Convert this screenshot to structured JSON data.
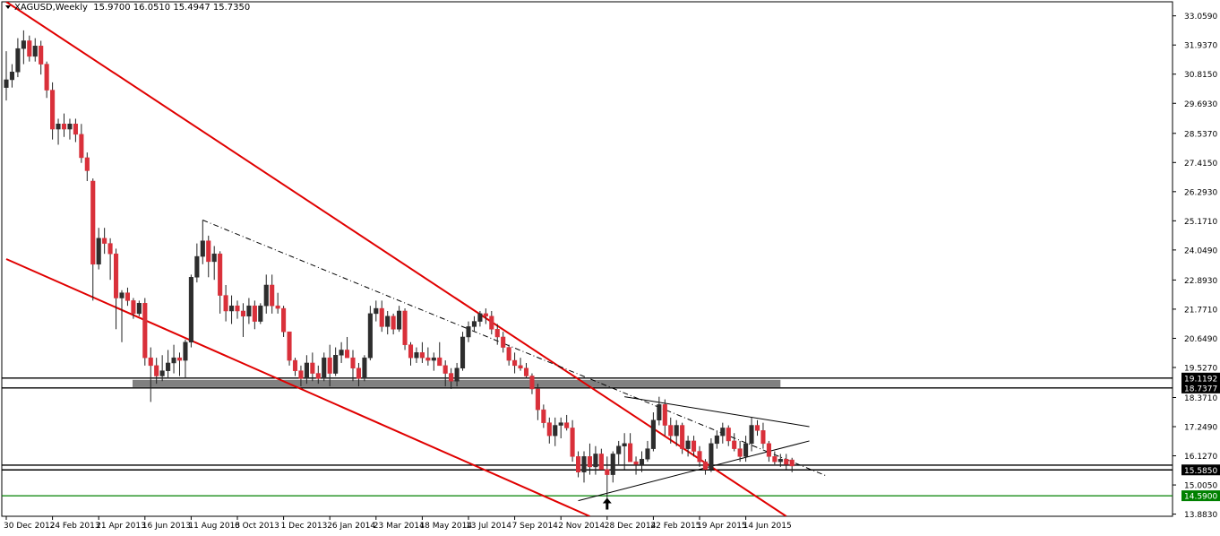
{
  "header": {
    "symbol": "XAGUSD,Weekly",
    "ohlc": "15.9700 16.0510 15.4947 15.7350"
  },
  "colors": {
    "bull": "#2d2d2d",
    "bear": "#d9303a",
    "channel": "#e00000",
    "zone": "#808080",
    "support_green": "#008000",
    "grid": "#000000"
  },
  "chart_data": {
    "type": "candlestick",
    "title": "",
    "ylim": [
      13.8,
      33.6
    ],
    "y_ticks": [
      "33.0590",
      "31.9370",
      "30.8150",
      "29.6930",
      "28.5370",
      "27.4150",
      "26.2930",
      "25.1710",
      "24.0490",
      "22.8930",
      "21.7710",
      "20.6490",
      "19.5270",
      "18.3710",
      "17.2490",
      "16.1270",
      "15.0050",
      "13.8830"
    ],
    "x_ticks": [
      "30 Dec 2012",
      "24 Feb 2013",
      "21 Apr 2013",
      "16 Jun 2013",
      "11 Aug 2013",
      "6 Oct 2013",
      "1 Dec 2013",
      "26 Jan 2014",
      "23 Mar 2014",
      "18 May 2014",
      "13 Jul 2014",
      "7 Sep 2014",
      "2 Nov 2014",
      "28 Dec 2014",
      "22 Feb 2015",
      "19 Apr 2015",
      "14 Jun 2015"
    ],
    "price_labels": [
      {
        "text": "19.1192",
        "value": 19.1192,
        "bg": "#000000",
        "fg": "#ffffff"
      },
      {
        "text": "18.7377",
        "value": 18.7377,
        "bg": "#000000",
        "fg": "#ffffff"
      },
      {
        "text": "15.5850",
        "value": 15.585,
        "bg": "#000000",
        "fg": "#ffffff"
      },
      {
        "text": "14.5900",
        "value": 14.59,
        "bg": "#008000",
        "fg": "#ffffff"
      }
    ],
    "horizontal_lines": [
      {
        "value": 19.1192,
        "color": "#000000"
      },
      {
        "value": 18.7377,
        "color": "#000000"
      },
      {
        "value": 15.77,
        "color": "#000000"
      },
      {
        "value": 15.585,
        "color": "#000000"
      },
      {
        "value": 14.59,
        "color": "#008000"
      }
    ],
    "zone": {
      "top": 19.05,
      "bottom": 18.77,
      "x_start": "1 Jun 2013",
      "x_end": "26 Jul 2015"
    },
    "candles": [
      {
        "t": "30 Dec 2012",
        "o": 30.3,
        "h": 31.7,
        "l": 29.8,
        "c": 30.6
      },
      {
        "t": "6 Jan 2013",
        "o": 30.6,
        "h": 31.2,
        "l": 30.3,
        "c": 30.9
      },
      {
        "t": "13 Jan 2013",
        "o": 30.9,
        "h": 32.2,
        "l": 30.7,
        "c": 31.8
      },
      {
        "t": "20 Jan 2013",
        "o": 31.8,
        "h": 32.5,
        "l": 31.2,
        "c": 32.1
      },
      {
        "t": "27 Jan 2013",
        "o": 32.1,
        "h": 32.3,
        "l": 31.3,
        "c": 31.5
      },
      {
        "t": "3 Feb 2013",
        "o": 31.5,
        "h": 32.2,
        "l": 31.3,
        "c": 31.9
      },
      {
        "t": "10 Feb 2013",
        "o": 31.9,
        "h": 32.1,
        "l": 30.8,
        "c": 31.2
      },
      {
        "t": "17 Feb 2013",
        "o": 31.2,
        "h": 31.3,
        "l": 29.9,
        "c": 30.2
      },
      {
        "t": "24 Feb 2013",
        "o": 30.2,
        "h": 30.5,
        "l": 28.3,
        "c": 28.7
      },
      {
        "t": "3 Mar 2013",
        "o": 28.7,
        "h": 29.1,
        "l": 28.1,
        "c": 28.9
      },
      {
        "t": "10 Mar 2013",
        "o": 28.9,
        "h": 29.3,
        "l": 28.4,
        "c": 28.7
      },
      {
        "t": "17 Mar 2013",
        "o": 28.7,
        "h": 29.1,
        "l": 28.3,
        "c": 28.9
      },
      {
        "t": "24 Mar 2013",
        "o": 28.9,
        "h": 29.1,
        "l": 28.2,
        "c": 28.5
      },
      {
        "t": "31 Mar 2013",
        "o": 28.5,
        "h": 28.9,
        "l": 27.4,
        "c": 27.6
      },
      {
        "t": "7 Apr 2013",
        "o": 27.6,
        "h": 27.8,
        "l": 26.7,
        "c": 27.1
      },
      {
        "t": "14 Apr 2013",
        "o": 26.7,
        "h": 26.8,
        "l": 22.1,
        "c": 23.5
      },
      {
        "t": "21 Apr 2013",
        "o": 23.5,
        "h": 24.9,
        "l": 23.3,
        "c": 24.5
      },
      {
        "t": "28 Apr 2013",
        "o": 24.5,
        "h": 24.9,
        "l": 23.9,
        "c": 24.3
      },
      {
        "t": "5 May 2013",
        "o": 24.3,
        "h": 24.5,
        "l": 22.9,
        "c": 23.9
      },
      {
        "t": "12 May 2013",
        "o": 23.9,
        "h": 24.1,
        "l": 21.0,
        "c": 22.2
      },
      {
        "t": "19 May 2013",
        "o": 22.2,
        "h": 22.5,
        "l": 20.5,
        "c": 22.4
      },
      {
        "t": "26 May 2013",
        "o": 22.4,
        "h": 22.6,
        "l": 21.9,
        "c": 22.1
      },
      {
        "t": "2 Jun 2013",
        "o": 22.1,
        "h": 22.2,
        "l": 21.4,
        "c": 21.6
      },
      {
        "t": "9 Jun 2013",
        "o": 21.6,
        "h": 22.1,
        "l": 21.5,
        "c": 22.0
      },
      {
        "t": "16 Jun 2013",
        "o": 22.0,
        "h": 22.2,
        "l": 19.6,
        "c": 19.9
      },
      {
        "t": "23 Jun 2013",
        "o": 19.9,
        "h": 20.3,
        "l": 18.2,
        "c": 19.6
      },
      {
        "t": "30 Jun 2013",
        "o": 19.6,
        "h": 19.9,
        "l": 18.9,
        "c": 19.2
      },
      {
        "t": "7 Jul 2013",
        "o": 19.2,
        "h": 20.0,
        "l": 19.0,
        "c": 19.4
      },
      {
        "t": "14 Jul 2013",
        "o": 19.4,
        "h": 20.2,
        "l": 19.1,
        "c": 19.7
      },
      {
        "t": "21 Jul 2013",
        "o": 19.7,
        "h": 20.4,
        "l": 19.3,
        "c": 19.9
      },
      {
        "t": "28 Jul 2013",
        "o": 19.9,
        "h": 20.1,
        "l": 19.2,
        "c": 19.8
      },
      {
        "t": "4 Aug 2013",
        "o": 19.8,
        "h": 20.6,
        "l": 19.1,
        "c": 20.5
      },
      {
        "t": "11 Aug 2013",
        "o": 20.5,
        "h": 23.1,
        "l": 20.3,
        "c": 23.0
      },
      {
        "t": "18 Aug 2013",
        "o": 23.0,
        "h": 24.3,
        "l": 22.8,
        "c": 23.8
      },
      {
        "t": "25 Aug 2013",
        "o": 23.8,
        "h": 25.2,
        "l": 23.5,
        "c": 24.4
      },
      {
        "t": "1 Sep 2013",
        "o": 24.4,
        "h": 24.6,
        "l": 23.0,
        "c": 23.6
      },
      {
        "t": "8 Sep 2013",
        "o": 23.6,
        "h": 24.2,
        "l": 22.9,
        "c": 23.9
      },
      {
        "t": "15 Sep 2013",
        "o": 23.9,
        "h": 24.0,
        "l": 21.6,
        "c": 22.3
      },
      {
        "t": "22 Sep 2013",
        "o": 22.3,
        "h": 22.7,
        "l": 21.3,
        "c": 21.7
      },
      {
        "t": "29 Sep 2013",
        "o": 21.7,
        "h": 22.3,
        "l": 21.2,
        "c": 21.9
      },
      {
        "t": "6 Oct 2013",
        "o": 21.9,
        "h": 22.1,
        "l": 21.4,
        "c": 21.7
      },
      {
        "t": "13 Oct 2013",
        "o": 21.7,
        "h": 22.0,
        "l": 20.7,
        "c": 21.5
      },
      {
        "t": "20 Oct 2013",
        "o": 21.5,
        "h": 22.2,
        "l": 21.2,
        "c": 21.9
      },
      {
        "t": "27 Oct 2013",
        "o": 21.9,
        "h": 22.1,
        "l": 21.0,
        "c": 21.3
      },
      {
        "t": "3 Nov 2013",
        "o": 21.3,
        "h": 22.0,
        "l": 21.2,
        "c": 21.9
      },
      {
        "t": "10 Nov 2013",
        "o": 21.9,
        "h": 23.1,
        "l": 21.6,
        "c": 22.7
      },
      {
        "t": "17 Nov 2013",
        "o": 22.7,
        "h": 23.1,
        "l": 21.6,
        "c": 21.9
      },
      {
        "t": "24 Nov 2013",
        "o": 21.9,
        "h": 22.4,
        "l": 21.6,
        "c": 21.8
      },
      {
        "t": "1 Dec 2013",
        "o": 21.8,
        "h": 21.9,
        "l": 20.7,
        "c": 20.9
      },
      {
        "t": "8 Dec 2013",
        "o": 20.9,
        "h": 20.9,
        "l": 19.6,
        "c": 19.8
      },
      {
        "t": "15 Dec 2013",
        "o": 19.8,
        "h": 19.9,
        "l": 19.2,
        "c": 19.4
      },
      {
        "t": "22 Dec 2013",
        "o": 19.4,
        "h": 19.6,
        "l": 18.8,
        "c": 19.1
      },
      {
        "t": "29 Dec 2013",
        "o": 19.1,
        "h": 20.0,
        "l": 18.9,
        "c": 19.7
      },
      {
        "t": "5 Jan 2014",
        "o": 19.7,
        "h": 20.1,
        "l": 19.0,
        "c": 19.3
      },
      {
        "t": "12 Jan 2014",
        "o": 19.3,
        "h": 19.6,
        "l": 18.9,
        "c": 19.1
      },
      {
        "t": "19 Jan 2014",
        "o": 19.1,
        "h": 20.1,
        "l": 19.0,
        "c": 19.9
      },
      {
        "t": "26 Jan 2014",
        "o": 19.9,
        "h": 20.4,
        "l": 18.8,
        "c": 19.3
      },
      {
        "t": "2 Feb 2014",
        "o": 19.3,
        "h": 20.3,
        "l": 19.2,
        "c": 20.0
      },
      {
        "t": "9 Feb 2014",
        "o": 20.0,
        "h": 20.5,
        "l": 19.7,
        "c": 20.2
      },
      {
        "t": "16 Feb 2014",
        "o": 20.2,
        "h": 20.7,
        "l": 19.9,
        "c": 19.9
      },
      {
        "t": "23 Feb 2014",
        "o": 19.9,
        "h": 20.2,
        "l": 19.0,
        "c": 19.5
      },
      {
        "t": "2 Mar 2014",
        "o": 19.5,
        "h": 19.7,
        "l": 18.8,
        "c": 19.1
      },
      {
        "t": "9 Mar 2014",
        "o": 19.1,
        "h": 20.0,
        "l": 19.0,
        "c": 19.9
      },
      {
        "t": "16 Mar 2014",
        "o": 19.9,
        "h": 21.9,
        "l": 19.8,
        "c": 21.6
      },
      {
        "t": "23 Mar 2014",
        "o": 21.6,
        "h": 22.1,
        "l": 21.3,
        "c": 21.8
      },
      {
        "t": "30 Mar 2014",
        "o": 21.8,
        "h": 22.1,
        "l": 20.9,
        "c": 21.1
      },
      {
        "t": "6 Apr 2014",
        "o": 21.1,
        "h": 21.7,
        "l": 20.8,
        "c": 21.5
      },
      {
        "t": "13 Apr 2014",
        "o": 21.5,
        "h": 21.6,
        "l": 20.8,
        "c": 21.0
      },
      {
        "t": "20 Apr 2014",
        "o": 21.0,
        "h": 21.9,
        "l": 20.9,
        "c": 21.7
      },
      {
        "t": "27 Apr 2014",
        "o": 21.7,
        "h": 21.8,
        "l": 20.2,
        "c": 20.4
      },
      {
        "t": "4 May 2014",
        "o": 20.4,
        "h": 20.5,
        "l": 19.6,
        "c": 19.9
      },
      {
        "t": "11 May 2014",
        "o": 19.9,
        "h": 20.3,
        "l": 19.7,
        "c": 20.1
      },
      {
        "t": "18 May 2014",
        "o": 20.1,
        "h": 20.5,
        "l": 19.7,
        "c": 19.9
      },
      {
        "t": "25 May 2014",
        "o": 19.9,
        "h": 20.3,
        "l": 19.6,
        "c": 19.8
      },
      {
        "t": "1 Jun 2014",
        "o": 19.8,
        "h": 20.1,
        "l": 19.4,
        "c": 19.9
      },
      {
        "t": "8 Jun 2014",
        "o": 19.9,
        "h": 20.5,
        "l": 19.6,
        "c": 19.6
      },
      {
        "t": "15 Jun 2014",
        "o": 19.6,
        "h": 19.8,
        "l": 18.8,
        "c": 19.3
      },
      {
        "t": "22 Jun 2014",
        "o": 19.3,
        "h": 19.5,
        "l": 18.7,
        "c": 19.0
      },
      {
        "t": "29 Jun 2014",
        "o": 19.0,
        "h": 19.7,
        "l": 18.8,
        "c": 19.5
      },
      {
        "t": "6 Jul 2014",
        "o": 19.5,
        "h": 20.9,
        "l": 19.4,
        "c": 20.7
      },
      {
        "t": "13 Jul 2014",
        "o": 20.7,
        "h": 21.3,
        "l": 20.5,
        "c": 21.1
      },
      {
        "t": "20 Jul 2014",
        "o": 21.1,
        "h": 21.5,
        "l": 20.9,
        "c": 21.3
      },
      {
        "t": "27 Jul 2014",
        "o": 21.3,
        "h": 21.7,
        "l": 21.1,
        "c": 21.6
      },
      {
        "t": "3 Aug 2014",
        "o": 21.6,
        "h": 21.8,
        "l": 21.2,
        "c": 21.5
      },
      {
        "t": "10 Aug 2014",
        "o": 21.5,
        "h": 21.7,
        "l": 20.8,
        "c": 21.0
      },
      {
        "t": "17 Aug 2014",
        "o": 21.0,
        "h": 21.2,
        "l": 20.4,
        "c": 20.7
      },
      {
        "t": "24 Aug 2014",
        "o": 20.7,
        "h": 20.9,
        "l": 20.1,
        "c": 20.3
      },
      {
        "t": "31 Aug 2014",
        "o": 20.3,
        "h": 20.4,
        "l": 19.6,
        "c": 19.8
      },
      {
        "t": "7 Sep 2014",
        "o": 19.8,
        "h": 20.1,
        "l": 19.3,
        "c": 19.6
      },
      {
        "t": "14 Sep 2014",
        "o": 19.6,
        "h": 19.9,
        "l": 19.4,
        "c": 19.5
      },
      {
        "t": "21 Sep 2014",
        "o": 19.5,
        "h": 19.7,
        "l": 19.1,
        "c": 19.2
      },
      {
        "t": "28 Sep 2014",
        "o": 19.2,
        "h": 19.3,
        "l": 18.5,
        "c": 18.7
      },
      {
        "t": "5 Oct 2014",
        "o": 18.7,
        "h": 18.9,
        "l": 17.5,
        "c": 17.9
      },
      {
        "t": "12 Oct 2014",
        "o": 17.9,
        "h": 18.1,
        "l": 17.2,
        "c": 17.4
      },
      {
        "t": "19 Oct 2014",
        "o": 17.4,
        "h": 17.6,
        "l": 16.6,
        "c": 16.9
      },
      {
        "t": "26 Oct 2014",
        "o": 16.9,
        "h": 17.6,
        "l": 16.5,
        "c": 17.3
      },
      {
        "t": "2 Nov 2014",
        "o": 17.3,
        "h": 17.6,
        "l": 16.8,
        "c": 17.4
      },
      {
        "t": "9 Nov 2014",
        "o": 17.4,
        "h": 17.7,
        "l": 17.1,
        "c": 17.2
      },
      {
        "t": "16 Nov 2014",
        "o": 17.2,
        "h": 17.5,
        "l": 15.9,
        "c": 16.1
      },
      {
        "t": "23 Nov 2014",
        "o": 16.1,
        "h": 16.3,
        "l": 15.3,
        "c": 15.5
      },
      {
        "t": "30 Nov 2014",
        "o": 15.5,
        "h": 16.3,
        "l": 15.1,
        "c": 16.1
      },
      {
        "t": "7 Dec 2014",
        "o": 16.1,
        "h": 16.6,
        "l": 15.4,
        "c": 15.7
      },
      {
        "t": "14 Dec 2014",
        "o": 15.7,
        "h": 16.5,
        "l": 15.4,
        "c": 16.2
      },
      {
        "t": "21 Dec 2014",
        "o": 16.2,
        "h": 16.4,
        "l": 15.6,
        "c": 15.6
      },
      {
        "t": "28 Dec 2014",
        "o": 15.6,
        "h": 16.1,
        "l": 14.4,
        "c": 15.4
      },
      {
        "t": "4 Jan 2015",
        "o": 15.4,
        "h": 16.3,
        "l": 15.1,
        "c": 16.2
      },
      {
        "t": "11 Jan 2015",
        "o": 16.2,
        "h": 16.7,
        "l": 15.8,
        "c": 16.5
      },
      {
        "t": "18 Jan 2015",
        "o": 16.5,
        "h": 17.0,
        "l": 15.6,
        "c": 16.6
      },
      {
        "t": "25 Jan 2015",
        "o": 16.6,
        "h": 17.0,
        "l": 16.0,
        "c": 15.9
      },
      {
        "t": "1 Feb 2015",
        "o": 15.9,
        "h": 16.1,
        "l": 15.4,
        "c": 15.8
      },
      {
        "t": "8 Feb 2015",
        "o": 15.8,
        "h": 16.3,
        "l": 15.5,
        "c": 16.0
      },
      {
        "t": "15 Feb 2015",
        "o": 16.0,
        "h": 16.7,
        "l": 15.9,
        "c": 16.4
      },
      {
        "t": "22 Feb 2015",
        "o": 16.4,
        "h": 17.8,
        "l": 16.3,
        "c": 17.5
      },
      {
        "t": "1 Mar 2015",
        "o": 17.5,
        "h": 18.4,
        "l": 17.3,
        "c": 18.1
      },
      {
        "t": "8 Mar 2015",
        "o": 18.1,
        "h": 18.3,
        "l": 16.9,
        "c": 17.3
      },
      {
        "t": "15 Mar 2015",
        "o": 17.3,
        "h": 17.6,
        "l": 16.6,
        "c": 16.9
      },
      {
        "t": "22 Mar 2015",
        "o": 16.9,
        "h": 17.5,
        "l": 16.5,
        "c": 17.3
      },
      {
        "t": "29 Mar 2015",
        "o": 17.3,
        "h": 17.4,
        "l": 16.2,
        "c": 16.4
      },
      {
        "t": "5 Apr 2015",
        "o": 16.4,
        "h": 16.9,
        "l": 16.1,
        "c": 16.7
      },
      {
        "t": "12 Apr 2015",
        "o": 16.7,
        "h": 16.9,
        "l": 16.1,
        "c": 16.3
      },
      {
        "t": "19 Apr 2015",
        "o": 16.3,
        "h": 16.5,
        "l": 15.7,
        "c": 15.9
      },
      {
        "t": "26 Apr 2015",
        "o": 15.9,
        "h": 16.0,
        "l": 15.4,
        "c": 15.6
      },
      {
        "t": "3 May 2015",
        "o": 15.6,
        "h": 16.8,
        "l": 15.5,
        "c": 16.6
      },
      {
        "t": "10 May 2015",
        "o": 16.6,
        "h": 17.1,
        "l": 16.4,
        "c": 16.9
      },
      {
        "t": "17 May 2015",
        "o": 16.9,
        "h": 17.4,
        "l": 16.6,
        "c": 17.2
      },
      {
        "t": "24 May 2015",
        "o": 17.2,
        "h": 17.3,
        "l": 16.5,
        "c": 16.7
      },
      {
        "t": "31 May 2015",
        "o": 16.7,
        "h": 17.0,
        "l": 16.3,
        "c": 16.4
      },
      {
        "t": "7 Jun 2015",
        "o": 16.4,
        "h": 16.7,
        "l": 15.9,
        "c": 16.1
      },
      {
        "t": "14 Jun 2015",
        "o": 16.1,
        "h": 16.9,
        "l": 15.9,
        "c": 16.6
      },
      {
        "t": "21 Jun 2015",
        "o": 16.6,
        "h": 17.6,
        "l": 16.3,
        "c": 17.3
      },
      {
        "t": "28 Jun 2015",
        "o": 17.3,
        "h": 17.5,
        "l": 16.9,
        "c": 17.1
      },
      {
        "t": "5 Jul 2015",
        "o": 17.1,
        "h": 17.4,
        "l": 16.4,
        "c": 16.6
      },
      {
        "t": "12 Jul 2015",
        "o": 16.6,
        "h": 16.7,
        "l": 15.9,
        "c": 16.1
      },
      {
        "t": "19 Jul 2015",
        "o": 16.1,
        "h": 16.3,
        "l": 15.8,
        "c": 15.9
      },
      {
        "t": "26 Jul 2015",
        "o": 15.9,
        "h": 16.2,
        "l": 15.7,
        "c": 16.0
      },
      {
        "t": "2 Aug 2015",
        "o": 16.0,
        "h": 16.2,
        "l": 15.6,
        "c": 15.8
      },
      {
        "t": "9 Aug 2015",
        "o": 15.97,
        "h": 16.051,
        "l": 15.4947,
        "c": 15.735
      }
    ],
    "trendlines": [
      {
        "name": "channel-upper",
        "color": "#e00000",
        "style": "solid",
        "p1": {
          "t": "30 Dec 2012",
          "v": 33.6
        },
        "p2": {
          "t": "2 Aug 2015",
          "v": 13.8
        }
      },
      {
        "name": "channel-lower",
        "color": "#e00000",
        "style": "solid",
        "p1": {
          "t": "30 Dec 2012",
          "v": 23.7
        },
        "p2": {
          "t": "7 Dec 2014",
          "v": 13.8
        }
      },
      {
        "name": "dashdot-resistance",
        "color": "#000000",
        "style": "dashdot",
        "p1": {
          "t": "25 Aug 2013",
          "v": 25.2
        },
        "p2": {
          "t": "20 Sep 2015",
          "v": 15.35
        }
      },
      {
        "name": "triangle-upper",
        "color": "#000000",
        "style": "solid",
        "p1": {
          "t": "18 Jan 2015",
          "v": 18.4
        },
        "p2": {
          "t": "30 Aug 2015",
          "v": 17.25
        }
      },
      {
        "name": "triangle-lower",
        "color": "#000000",
        "style": "solid",
        "p1": {
          "t": "23 Nov 2014",
          "v": 14.4
        },
        "p2": {
          "t": "30 Aug 2015",
          "v": 16.7
        }
      }
    ],
    "annotations": [
      {
        "name": "up-arrow-marker",
        "t": "28 Dec 2014",
        "v": 14.3
      }
    ]
  }
}
